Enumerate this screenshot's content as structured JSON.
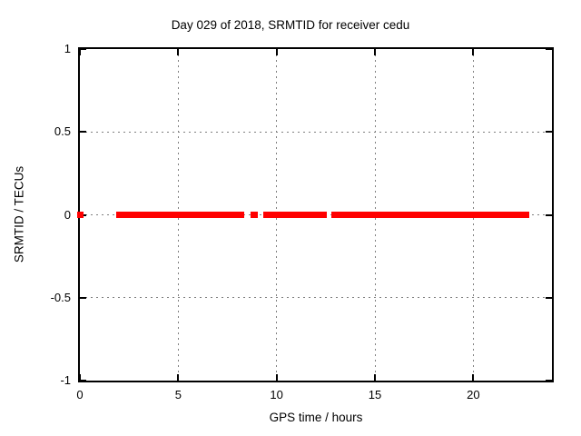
{
  "window": {
    "background": "#ffffff"
  },
  "chart_data": {
    "type": "scatter",
    "title": "Day 029 of 2018, SRMTID for receiver cedu",
    "xlabel": "GPS time / hours",
    "ylabel": "SRMTID / TECUs",
    "xlim": [
      0,
      24
    ],
    "ylim": [
      -1,
      1
    ],
    "x_ticks": [
      0,
      5,
      10,
      15,
      20
    ],
    "x_tick_labels": [
      "0",
      "5",
      "10",
      "15",
      "20"
    ],
    "y_ticks": [
      -1,
      -0.5,
      0,
      0.5,
      1
    ],
    "y_tick_labels": [
      "-1",
      "-0.5",
      "0",
      "0.5",
      "1"
    ],
    "grid": true,
    "legend_position": "none",
    "colors": {
      "points": "#ff0000",
      "grid": "#7f7f7f",
      "axis": "#000000",
      "text": "#000000"
    },
    "series": [
      {
        "name": "SRMTID",
        "color": "#ff0000",
        "marker": "filled-square",
        "y_value": 0,
        "x_segments_hours": [
          [
            0.0,
            0.0
          ],
          [
            1.85,
            8.35
          ],
          [
            8.67,
            9.04
          ],
          [
            9.31,
            12.27
          ],
          [
            12.41,
            12.64
          ],
          [
            12.78,
            22.84
          ]
        ]
      }
    ]
  }
}
